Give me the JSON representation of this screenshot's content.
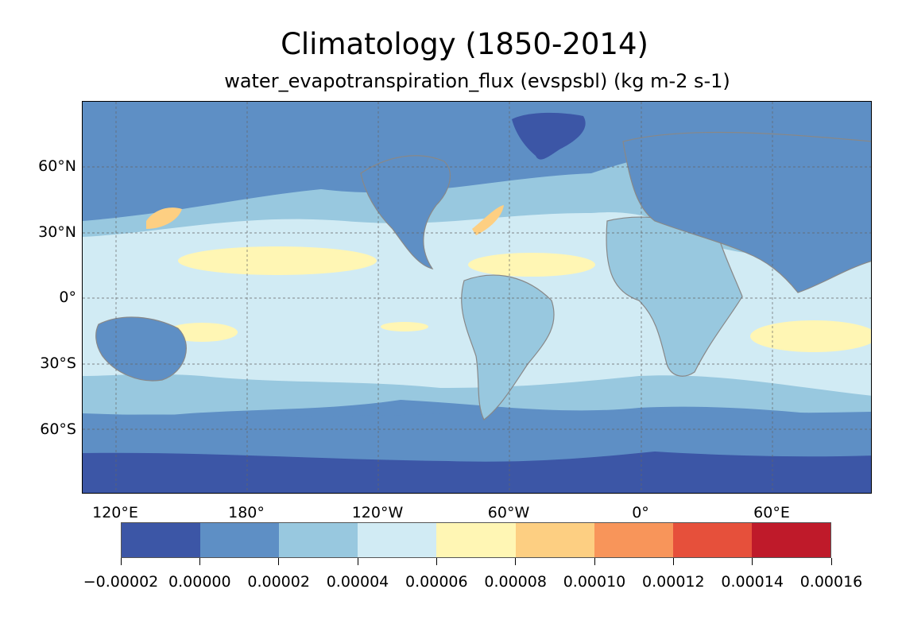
{
  "title": "Climatology (1850-2014)",
  "subtitle": "water_evapotranspiration_flux (evspsbl) (kg m-2 s-1)",
  "lat_labels": [
    "60°N",
    "30°N",
    "0°",
    "30°S",
    "60°S"
  ],
  "lon_labels": [
    "120°E",
    "180°",
    "120°W",
    "60°W",
    "0°",
    "60°E"
  ],
  "colorbar": {
    "colors": [
      "#3c56a6",
      "#5e8fc5",
      "#98c8df",
      "#d1ebf4",
      "#fff6b4",
      "#fdcf82",
      "#f8955a",
      "#e6503b",
      "#bf1a2a"
    ],
    "tick_labels": [
      "−0.00002",
      "0.00000",
      "0.00002",
      "0.00004",
      "0.00006",
      "0.00008",
      "0.00010",
      "0.00012",
      "0.00014",
      "0.00016"
    ]
  },
  "colors": {
    "land_outline": "#888888",
    "gridline": "#666666"
  }
}
